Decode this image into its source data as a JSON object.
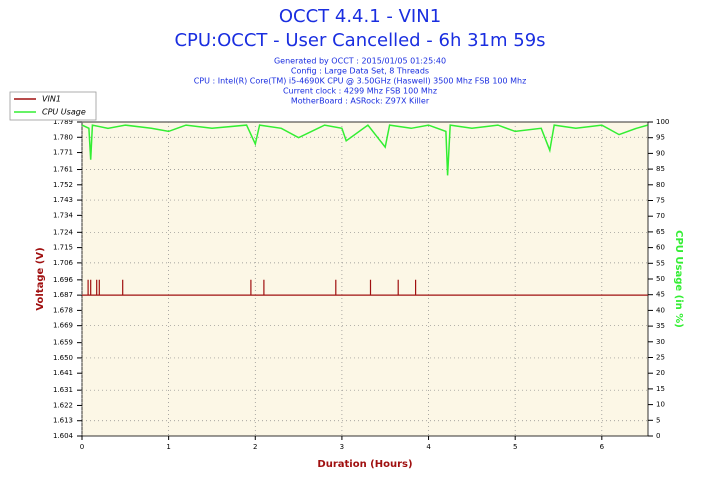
{
  "chart_data": {
    "type": "line",
    "title": "OCCT 4.4.1 - VIN1",
    "subtitle": "CPU:OCCT - User Cancelled - 6h 31m 59s",
    "info_lines": [
      "Generated by OCCT : 2015/01/05 01:25:40",
      "Config : Large Data Set, 8 Threads",
      "CPU : Intel(R) Core(TM) i5-4690K CPU @ 3.50GHz (Haswell) 3500 Mhz FSB 100 Mhz",
      "Current clock : 4299 Mhz FSB 100 Mhz",
      "MotherBoard : ASRock: Z97X Killer"
    ],
    "x_label": "Duration (Hours)",
    "y_label": "Voltage (V)",
    "y2_label": "CPU Usage (in %)",
    "xlim": [
      0,
      6.533
    ],
    "xticks": [
      0,
      1,
      2,
      3,
      4,
      5,
      6
    ],
    "ylim": [
      1.604,
      1.789
    ],
    "yticks": [
      1.604,
      1.613,
      1.622,
      1.631,
      1.641,
      {
        "value": 1.65,
        "label": "1.650"
      },
      1.659,
      1.669,
      1.678,
      1.687,
      1.696,
      1.706,
      1.715,
      1.724,
      1.734,
      1.743,
      1.752,
      1.761,
      1.771,
      {
        "value": 1.78,
        "label": "1.780"
      },
      1.789
    ],
    "y2lim": [
      0,
      100
    ],
    "y2ticks": [
      0,
      5,
      10,
      15,
      20,
      25,
      30,
      35,
      40,
      45,
      50,
      55,
      60,
      65,
      70,
      75,
      80,
      85,
      90,
      95,
      100
    ],
    "grid": true,
    "legend": "top-left",
    "series": [
      {
        "name": "VIN1",
        "color": "#a01010",
        "x": [
          0,
          0.07,
          0.07,
          0.07,
          0.1,
          0.1,
          0.1,
          0.17,
          0.17,
          0.17,
          0.2,
          0.2,
          0.2,
          0.47,
          0.47,
          0.47,
          1.95,
          1.95,
          1.95,
          2.1,
          2.1,
          2.1,
          2.93,
          2.93,
          2.93,
          3.33,
          3.33,
          3.33,
          3.65,
          3.65,
          3.65,
          3.85,
          3.85,
          3.85,
          6.53
        ],
        "values": [
          1.687,
          1.687,
          1.696,
          1.687,
          1.687,
          1.696,
          1.687,
          1.687,
          1.696,
          1.687,
          1.687,
          1.696,
          1.687,
          1.687,
          1.696,
          1.687,
          1.687,
          1.696,
          1.687,
          1.687,
          1.696,
          1.687,
          1.687,
          1.696,
          1.687,
          1.687,
          1.696,
          1.687,
          1.687,
          1.696,
          1.687,
          1.687,
          1.696,
          1.687,
          1.687
        ]
      },
      {
        "name": "CPU Usage",
        "color": "#33ee33",
        "axis": "y2",
        "x": [
          0,
          0.08,
          0.1,
          0.12,
          0.3,
          0.5,
          0.8,
          1.0,
          1.2,
          1.5,
          1.9,
          2.0,
          2.05,
          2.3,
          2.5,
          2.8,
          3.0,
          3.05,
          3.3,
          3.5,
          3.55,
          3.8,
          4.0,
          4.2,
          4.22,
          4.25,
          4.5,
          4.8,
          5.0,
          5.3,
          5.4,
          5.45,
          5.7,
          6.0,
          6.2,
          6.4,
          6.53
        ],
        "values": [
          99,
          98,
          88,
          99,
          98,
          99,
          98,
          97,
          99,
          98,
          99,
          93,
          99,
          98,
          95,
          99,
          98,
          94,
          99,
          92,
          99,
          98,
          99,
          97,
          83,
          99,
          98,
          99,
          97,
          98,
          91,
          99,
          98,
          99,
          96,
          98,
          99
        ]
      }
    ]
  }
}
